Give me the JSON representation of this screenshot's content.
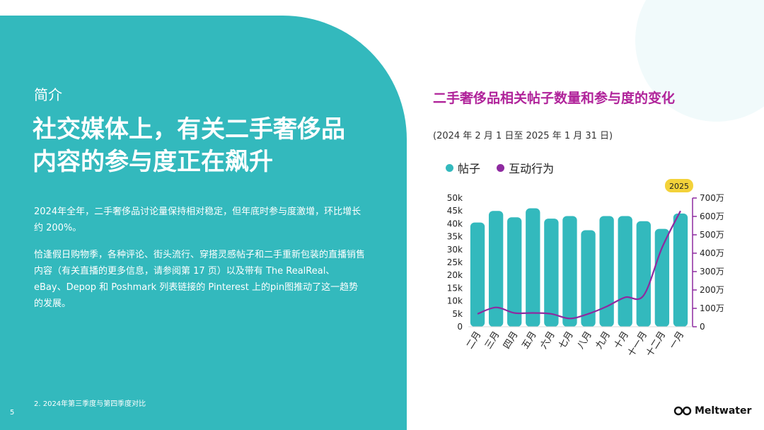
{
  "slide": {
    "section_label": "简介",
    "headline_lines": [
      "社交媒体上，有关二手奢侈品",
      "内容的参与度正在飙升"
    ],
    "paragraph_1": "2024年全年，二手奢侈品讨论量保持相对稳定，但年底时参与度激增，环比增长约 200%。",
    "paragraph_2": "恰逢假日购物季，各种评论、街头流行、穿搭灵感帖子和二手重新包装的直播销售内容（有关直播的更多信息，请参阅第 17 页）以及带有 The RealReal、eBay、Depop 和 Poshmark 列表链接的 Pinterest 上的pin图推动了这一趋势的发展。",
    "footnote": "2. 2024年第三季度与第四季度对比",
    "page_number": "5",
    "logo_text": "Meltwater"
  },
  "colors": {
    "panel": "#33b9bd",
    "bars": "#33b9bd",
    "line": "#8e2aa0",
    "title": "#b0239a",
    "badge": "#f3d23a"
  },
  "chart_data": {
    "type": "bar",
    "title": "二手奢侈品相关帖子数量和参与度的变化",
    "subtitle": "(2024 年 2 月 1 日至 2025 年 1 月 31 日)",
    "categories": [
      "二月",
      "三月",
      "四月",
      "五月",
      "六月",
      "七月",
      "八月",
      "九月",
      "十月",
      "十一月",
      "十二月",
      "一月"
    ],
    "series": [
      {
        "name": "帖子",
        "type": "bar",
        "axis": "left",
        "values": [
          40500,
          45000,
          42500,
          46000,
          42000,
          43000,
          37500,
          43000,
          43000,
          41000,
          38000,
          44000
        ]
      },
      {
        "name": "互动行为",
        "type": "line",
        "axis": "right",
        "values": [
          70,
          105,
          75,
          75,
          70,
          45,
          70,
          110,
          160,
          170,
          430,
          630
        ]
      }
    ],
    "y_left": {
      "ylim": [
        0,
        50000
      ],
      "ticks": [
        "0",
        "5k",
        "10k",
        "15k",
        "20k",
        "25k",
        "30k",
        "35k",
        "40k",
        "45k",
        "50k"
      ]
    },
    "y_right": {
      "ylim": [
        0,
        700
      ],
      "ticks": [
        "0",
        "100万",
        "200万",
        "300万",
        "400万",
        "500万",
        "600万",
        "700万"
      ]
    },
    "legend_position": "top-left",
    "grid": false,
    "annotation": "2025"
  }
}
